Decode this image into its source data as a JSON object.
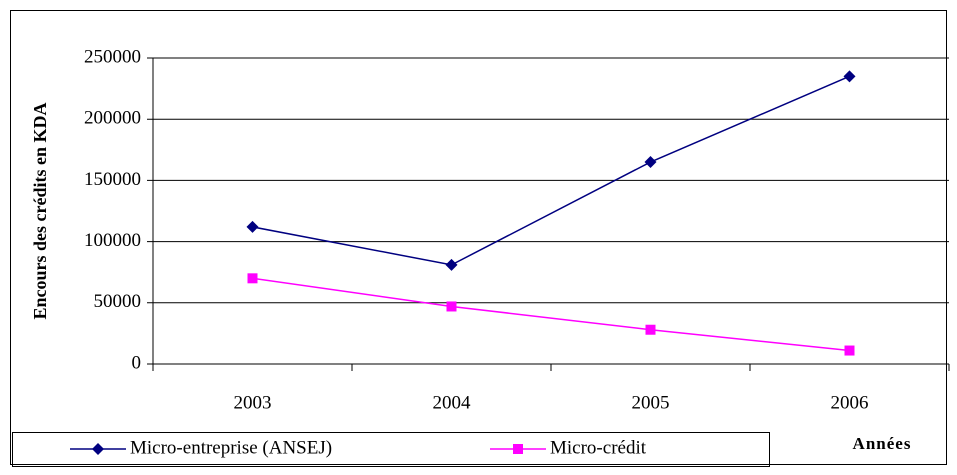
{
  "chart_data": {
    "type": "line",
    "y_label": "Encours des crédits en KDA",
    "x_label": "Années",
    "categories": [
      "2003",
      "2004",
      "2005",
      "2006"
    ],
    "series": [
      {
        "name": "Micro-entreprise (ANSEJ)",
        "color": "#000080",
        "marker": "diamond",
        "values": [
          112000,
          81000,
          165000,
          235000
        ]
      },
      {
        "name": "Micro-crédit",
        "color": "#ff00ff",
        "marker": "square",
        "values": [
          70000,
          47000,
          28000,
          11000
        ]
      }
    ],
    "ylim": [
      0,
      250000
    ],
    "yticks": [
      0,
      50000,
      100000,
      150000,
      200000,
      250000
    ],
    "grid": true,
    "legend": "bottom"
  }
}
